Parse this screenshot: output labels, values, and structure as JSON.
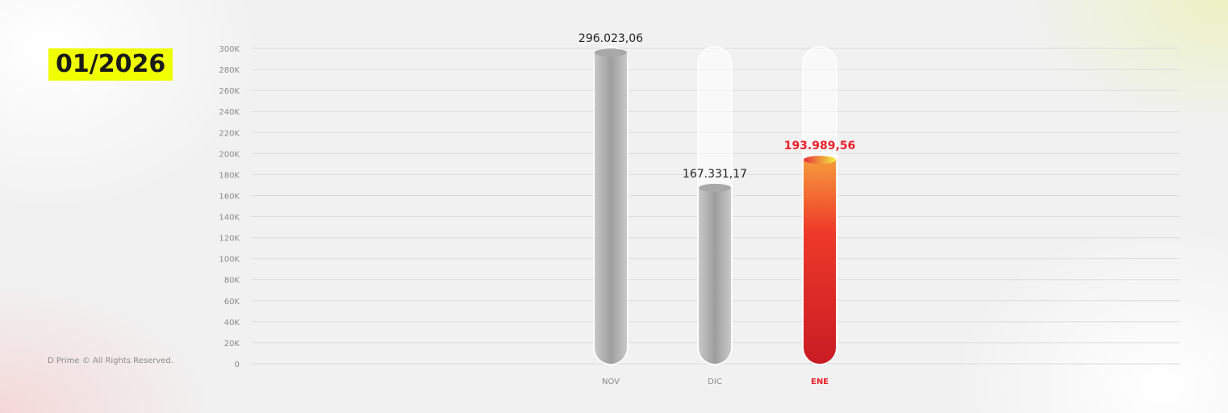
{
  "period_label": "01/2026",
  "footer": "D Prime © All Rights Reserved.",
  "chart_data": {
    "type": "bar",
    "categories": [
      "NOV",
      "DIC",
      "ENE"
    ],
    "values": [
      296023.06,
      167331.17,
      193989.56
    ],
    "data_labels": [
      "296.023,06",
      "167.331,17",
      "193.989,56"
    ],
    "highlight_index": 2,
    "ylim": [
      0,
      300000
    ],
    "yticks": [
      "0",
      "20K",
      "40K",
      "60K",
      "80K",
      "100K",
      "120K",
      "140K",
      "160K",
      "180K",
      "200K",
      "220K",
      "240K",
      "260K",
      "280K",
      "300K"
    ],
    "grid": true,
    "colors": {
      "highlight": "#e8202a",
      "default_bar": "#b5b5b5",
      "period_badge": "#f0ff00"
    }
  }
}
